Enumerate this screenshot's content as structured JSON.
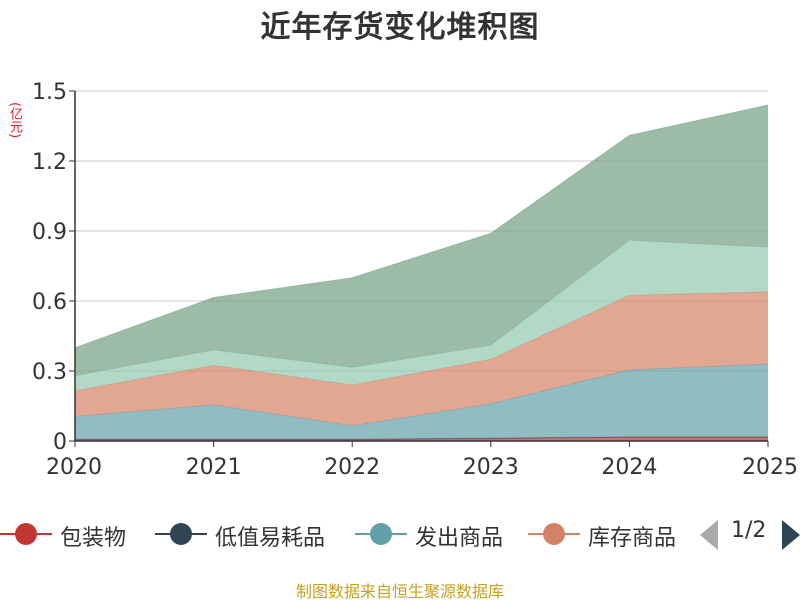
{
  "chart_data": {
    "type": "area",
    "stacked": true,
    "title": "近年存货变化堆积图",
    "unit_label": "(亿元)",
    "x": [
      "2020",
      "2021",
      "2022",
      "2023",
      "2024",
      "2025"
    ],
    "ylim": [
      0,
      1.5
    ],
    "yticks": [
      "0",
      "0.3",
      "0.6",
      "0.9",
      "1.2",
      "1.5"
    ],
    "grid": true,
    "series": [
      {
        "name": "包装物",
        "color": "#c23531",
        "values": [
          0.005,
          0.005,
          0.005,
          0.01,
          0.015,
          0.015
        ]
      },
      {
        "name": "低值易耗品",
        "color": "#2f4554",
        "values": [
          0.003,
          0.003,
          0.003,
          0.003,
          0.003,
          0.003
        ]
      },
      {
        "name": "发出商品",
        "color": "#61a0a8",
        "values": [
          0.097,
          0.147,
          0.057,
          0.147,
          0.287,
          0.312
        ]
      },
      {
        "name": "库存商品",
        "color": "#d48265",
        "values": [
          0.11,
          0.17,
          0.175,
          0.19,
          0.32,
          0.31
        ]
      },
      {
        "name": "",
        "color": "#91c7ae",
        "values": [
          0.065,
          0.065,
          0.075,
          0.06,
          0.235,
          0.19
        ]
      },
      {
        "name": "",
        "color": "#749f83",
        "values": [
          0.12,
          0.225,
          0.385,
          0.48,
          0.45,
          0.61
        ]
      }
    ]
  },
  "legend": {
    "items": [
      {
        "label": "包装物",
        "color": "#c23531"
      },
      {
        "label": "低值易耗品",
        "color": "#2f4554"
      },
      {
        "label": "发出商品",
        "color": "#61a0a8"
      },
      {
        "label": "库存商品",
        "color": "#d48265"
      }
    ],
    "page_indicator": "1/2"
  },
  "source_note": "制图数据来自恒生聚源数据库"
}
